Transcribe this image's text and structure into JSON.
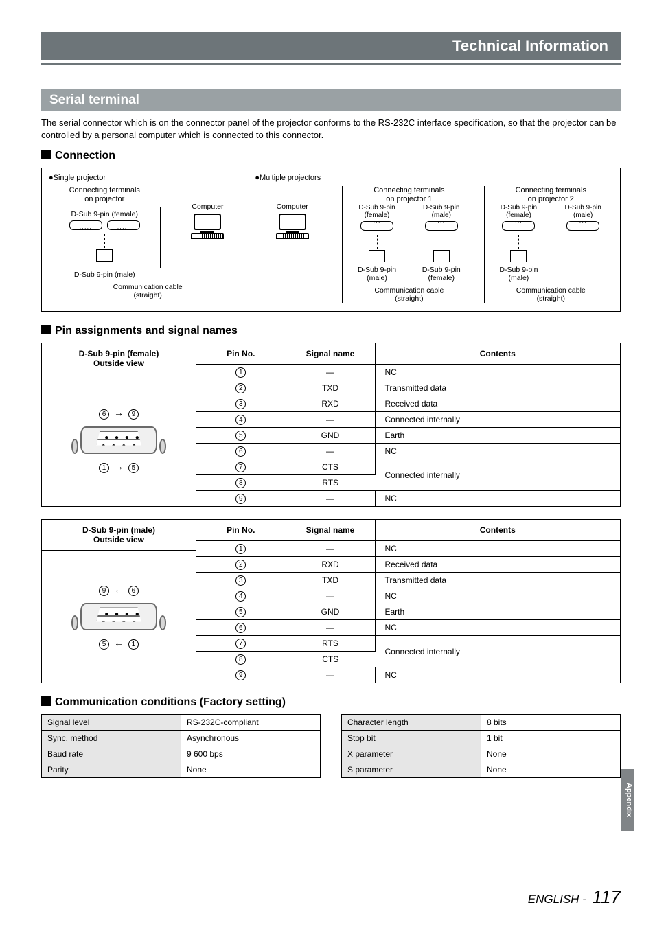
{
  "header": {
    "title": "Technical Information"
  },
  "serial": {
    "heading": "Serial terminal",
    "intro": "The serial connector which is on the connector panel of the projector conforms to the RS-232C interface specification, so that the projector can be controlled by a personal computer which is connected to this connector."
  },
  "connection": {
    "heading": "Connection",
    "single_label": "●Single projector",
    "multi_label": "●Multiple projectors",
    "conn_terminals": "Connecting terminals",
    "on_projector": "on projector",
    "on_projector1": "on projector 1",
    "on_projector2": "on projector 2",
    "computer": "Computer",
    "dsub_female": "D-Sub 9-pin (female)",
    "dsub_male": "D-Sub 9-pin (male)",
    "dsub9_female_short": "D-Sub 9-pin\n(female)",
    "dsub9_male_short": "D-Sub 9-pin\n(male)",
    "comm_cable": "Communication cable",
    "straight": "(straight)"
  },
  "pinassign": {
    "heading": "Pin assignments and signal names",
    "head_left_female": "D-Sub 9-pin (female)\nOutside view",
    "head_left_male": "D-Sub 9-pin (male)\nOutside view",
    "col_pin": "Pin No.",
    "col_sig": "Signal name",
    "col_con": "Contents",
    "female_range_top_a": "6",
    "female_range_top_b": "9",
    "female_range_bot_a": "1",
    "female_range_bot_b": "5",
    "male_range_top_a": "9",
    "male_range_top_b": "6",
    "male_range_bot_a": "5",
    "male_range_bot_b": "1",
    "female_rows": [
      {
        "n": "1",
        "sig": "—",
        "con": "NC"
      },
      {
        "n": "2",
        "sig": "TXD",
        "con": "Transmitted data"
      },
      {
        "n": "3",
        "sig": "RXD",
        "con": "Received data"
      },
      {
        "n": "4",
        "sig": "—",
        "con": "Connected internally"
      },
      {
        "n": "5",
        "sig": "GND",
        "con": "Earth"
      },
      {
        "n": "6",
        "sig": "—",
        "con": "NC"
      },
      {
        "n": "7",
        "sig": "CTS",
        "con": ""
      },
      {
        "n": "8",
        "sig": "RTS",
        "con": "Connected internally"
      },
      {
        "n": "9",
        "sig": "—",
        "con": "NC"
      }
    ],
    "male_rows": [
      {
        "n": "1",
        "sig": "—",
        "con": "NC"
      },
      {
        "n": "2",
        "sig": "RXD",
        "con": "Received data"
      },
      {
        "n": "3",
        "sig": "TXD",
        "con": "Transmitted data"
      },
      {
        "n": "4",
        "sig": "—",
        "con": "NC"
      },
      {
        "n": "5",
        "sig": "GND",
        "con": "Earth"
      },
      {
        "n": "6",
        "sig": "—",
        "con": "NC"
      },
      {
        "n": "7",
        "sig": "RTS",
        "con": ""
      },
      {
        "n": "8",
        "sig": "CTS",
        "con": "Connected internally"
      },
      {
        "n": "9",
        "sig": "—",
        "con": "NC"
      }
    ]
  },
  "comm": {
    "heading": "Communication conditions (Factory setting)",
    "left": [
      [
        "Signal level",
        "RS-232C-compliant"
      ],
      [
        "Sync. method",
        "Asynchronous"
      ],
      [
        "Baud rate",
        "9 600 bps"
      ],
      [
        "Parity",
        "None"
      ]
    ],
    "right": [
      [
        "Character length",
        "8 bits"
      ],
      [
        "Stop bit",
        "1 bit"
      ],
      [
        "X parameter",
        "None"
      ],
      [
        "S parameter",
        "None"
      ]
    ]
  },
  "footer": {
    "lang": "ENGLISH",
    "dash": " - ",
    "page": "117"
  },
  "sidetab": "Appendix",
  "colors": {
    "band": "#6d7579",
    "section": "#9aa1a4",
    "shade": "#e6e6e6",
    "tab": "#808487"
  }
}
